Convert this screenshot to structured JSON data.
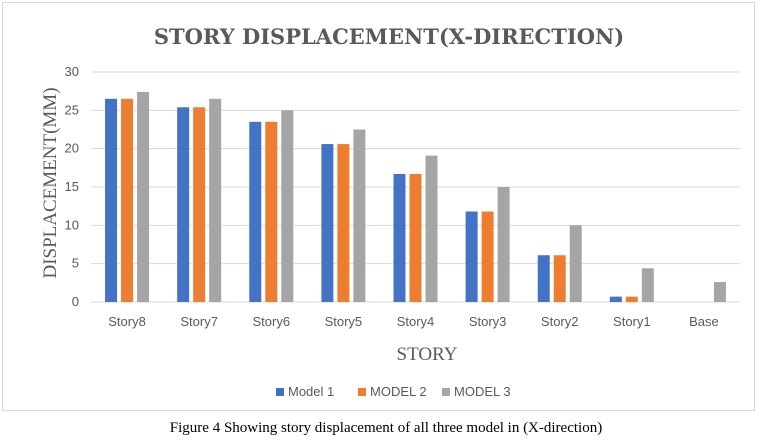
{
  "chart_data": {
    "type": "bar",
    "title": "STORY DISPLACEMENT(X-DIRECTION)",
    "xlabel": "STORY",
    "ylabel": "DISPLACEMENT(MM)",
    "categories": [
      "Story8",
      "Story7",
      "Story6",
      "Story5",
      "Story4",
      "Story3",
      "Story2",
      "Story1",
      "Base"
    ],
    "series": [
      {
        "name": "Model 1",
        "color": "#4472c4",
        "values": [
          26.5,
          25.4,
          23.5,
          20.6,
          16.7,
          11.8,
          6.1,
          0.7,
          0
        ]
      },
      {
        "name": "MODEL 2",
        "color": "#ed7d31",
        "values": [
          26.5,
          25.4,
          23.5,
          20.6,
          16.7,
          11.8,
          6.1,
          0.7,
          0
        ]
      },
      {
        "name": "MODEL 3",
        "color": "#a5a5a5",
        "values": [
          27.4,
          26.5,
          25.0,
          22.5,
          19.1,
          15.0,
          10.0,
          4.4,
          2.6
        ]
      }
    ],
    "ylim": [
      0,
      30
    ],
    "yticks": [
      0,
      5,
      10,
      15,
      20,
      25,
      30
    ],
    "grid": true,
    "legend": "bottom"
  },
  "caption": "Figure 4 Showing story displacement of all three model in (X-direction)"
}
